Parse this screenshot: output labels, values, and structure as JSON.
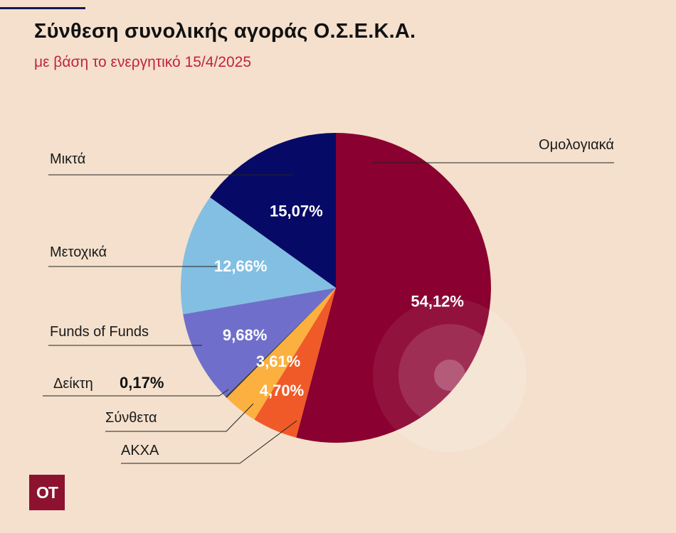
{
  "header": {
    "title": "Σύνθεση συνολικής αγοράς Ο.Σ.Ε.Κ.Α.",
    "subtitle": "με βάση το ενεργητικό 15/4/2025"
  },
  "brand": {
    "logo_text": "OT",
    "logo_color": "#8c1230"
  },
  "chart_data": {
    "type": "pie",
    "title": "Σύνθεση συνολικής αγοράς Ο.Σ.Ε.Κ.Α.",
    "subtitle": "με βάση το ενεργητικό 15/4/2025",
    "slices": [
      {
        "name": "Ομολογιακά",
        "value": 54.12,
        "label": "54,12%",
        "color": "#8a0030"
      },
      {
        "name": "ΑΚΧΑ",
        "value": 4.7,
        "label": "4,70%",
        "color": "#f05a28"
      },
      {
        "name": "Σύνθετα",
        "value": 3.61,
        "label": "3,61%",
        "color": "#fbb040"
      },
      {
        "name": "Δείκτη",
        "value": 0.17,
        "label": "0,17%",
        "color": "#3a3a3a"
      },
      {
        "name": "Funds of Funds",
        "value": 9.68,
        "label": "9,68%",
        "color": "#6f6fcb"
      },
      {
        "name": "Μετοχικά",
        "value": 12.66,
        "label": "12,66%",
        "color": "#82bfe3"
      },
      {
        "name": "Μικτά",
        "value": 15.07,
        "label": "15,07%",
        "color": "#060a66"
      }
    ]
  }
}
